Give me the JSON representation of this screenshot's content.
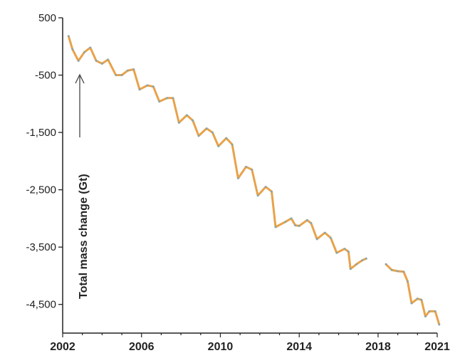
{
  "chart_data": {
    "type": "line",
    "title": "",
    "xlabel": "",
    "ylabel": "Total mass change (Gt)",
    "xlim": [
      2002,
      2021
    ],
    "ylim": [
      -5000,
      500
    ],
    "x_ticks": [
      2002,
      2006,
      2010,
      2014,
      2018,
      2021
    ],
    "x_tick_labels": [
      "2002",
      "2006",
      "2010",
      "2014",
      "2018",
      "2021"
    ],
    "y_ticks": [
      500,
      -500,
      -1500,
      -2500,
      -3500,
      -4500
    ],
    "y_tick_labels": [
      "500",
      "-500",
      "-1,500",
      "-2,500",
      "-3,500",
      "-4,500"
    ],
    "grid": false,
    "colors": {
      "seasonal": "#e8a24a",
      "trend": "#7fa9b8",
      "axis": "#222222",
      "annotation_arrow": "#444444"
    },
    "series": [
      {
        "segments": [
          [
            [
              2002.3,
              180
            ],
            [
              2002.5,
              -50
            ],
            [
              2002.8,
              -250
            ],
            [
              2003.1,
              -100
            ],
            [
              2003.4,
              -20
            ],
            [
              2003.7,
              -250
            ],
            [
              2004.0,
              -300
            ],
            [
              2004.3,
              -230
            ],
            [
              2004.7,
              -500
            ],
            [
              2005.0,
              -500
            ],
            [
              2005.3,
              -420
            ],
            [
              2005.6,
              -400
            ],
            [
              2005.9,
              -750
            ],
            [
              2006.3,
              -680
            ],
            [
              2006.6,
              -700
            ],
            [
              2006.9,
              -960
            ],
            [
              2007.3,
              -900
            ],
            [
              2007.6,
              -900
            ],
            [
              2007.9,
              -1330
            ],
            [
              2008.3,
              -1200
            ],
            [
              2008.6,
              -1290
            ],
            [
              2008.9,
              -1560
            ],
            [
              2009.3,
              -1430
            ],
            [
              2009.6,
              -1500
            ],
            [
              2009.9,
              -1740
            ],
            [
              2010.3,
              -1600
            ],
            [
              2010.6,
              -1710
            ],
            [
              2010.9,
              -2300
            ],
            [
              2011.3,
              -2100
            ],
            [
              2011.6,
              -2150
            ],
            [
              2011.9,
              -2600
            ],
            [
              2012.3,
              -2450
            ],
            [
              2012.6,
              -2530
            ],
            [
              2012.8,
              -3150
            ],
            [
              2013.3,
              -3060
            ],
            [
              2013.6,
              -3000
            ],
            [
              2013.8,
              -3120
            ],
            [
              2014.0,
              -3130
            ],
            [
              2014.4,
              -3030
            ],
            [
              2014.6,
              -3080
            ],
            [
              2014.9,
              -3360
            ],
            [
              2015.3,
              -3250
            ],
            [
              2015.6,
              -3340
            ],
            [
              2015.9,
              -3600
            ],
            [
              2016.3,
              -3530
            ],
            [
              2016.5,
              -3580
            ],
            [
              2016.6,
              -3880
            ],
            [
              2016.9,
              -3800
            ],
            [
              2017.2,
              -3730
            ],
            [
              2017.4,
              -3700
            ]
          ],
          [
            [
              2018.4,
              -3800
            ],
            [
              2018.7,
              -3900
            ],
            [
              2019.0,
              -3920
            ],
            [
              2019.3,
              -3930
            ],
            [
              2019.5,
              -4100
            ],
            [
              2019.7,
              -4480
            ],
            [
              2020.0,
              -4400
            ],
            [
              2020.2,
              -4420
            ],
            [
              2020.4,
              -4710
            ],
            [
              2020.6,
              -4620
            ],
            [
              2020.9,
              -4620
            ],
            [
              2021.1,
              -4850
            ]
          ]
        ]
      }
    ]
  }
}
